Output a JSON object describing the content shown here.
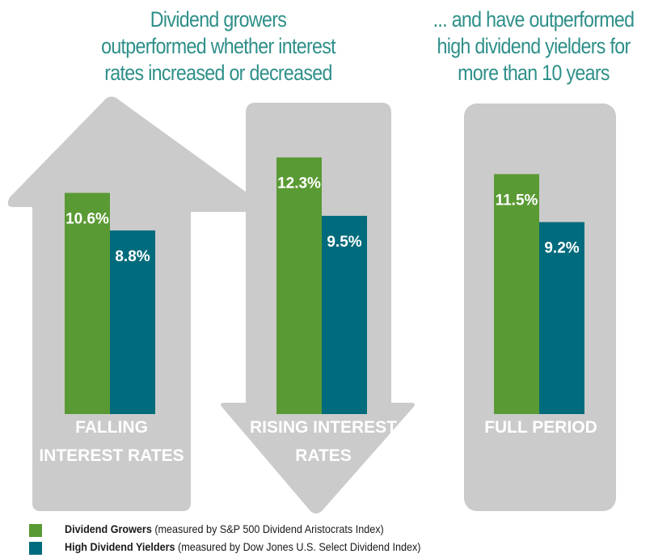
{
  "headlines": {
    "left": [
      "Dividend growers",
      "outperformed whether interest",
      "rates increased or decreased"
    ],
    "right": [
      "... and have outperformed",
      "high dividend yielders for",
      "more than 10 years"
    ]
  },
  "colors": {
    "growers": "#5a9a34",
    "yielders": "#006b7c",
    "shape": "#cbcbcb",
    "headline": "#2e8f89"
  },
  "chart_data": {
    "type": "bar",
    "categories": [
      "FALLING INTEREST RATES",
      "RISING INTEREST RATES",
      "FULL PERIOD"
    ],
    "category_lines": [
      [
        "FALLING",
        "INTEREST RATES"
      ],
      [
        "RISING INTEREST",
        "RATES"
      ],
      [
        "FULL PERIOD"
      ]
    ],
    "series": [
      {
        "name": "Dividend Growers",
        "values": [
          10.6,
          12.3,
          11.5
        ],
        "labels": [
          "10.6%",
          "12.3%",
          "11.5%"
        ]
      },
      {
        "name": "High Dividend Yielders",
        "values": [
          8.8,
          9.5,
          9.2
        ],
        "labels": [
          "8.8%",
          "9.5%",
          "9.2%"
        ]
      }
    ],
    "background_shapes": [
      "up-arrow",
      "down-arrow",
      "rounded-rectangle"
    ],
    "legend_position": "bottom-left"
  },
  "legend": [
    {
      "bold": "Dividend Growers",
      "rest": " (measured by S&P 500 Dividend Aristocrats Index)"
    },
    {
      "bold": "High Dividend Yielders",
      "rest": " (measured by Dow Jones U.S. Select Dividend Index)"
    }
  ]
}
